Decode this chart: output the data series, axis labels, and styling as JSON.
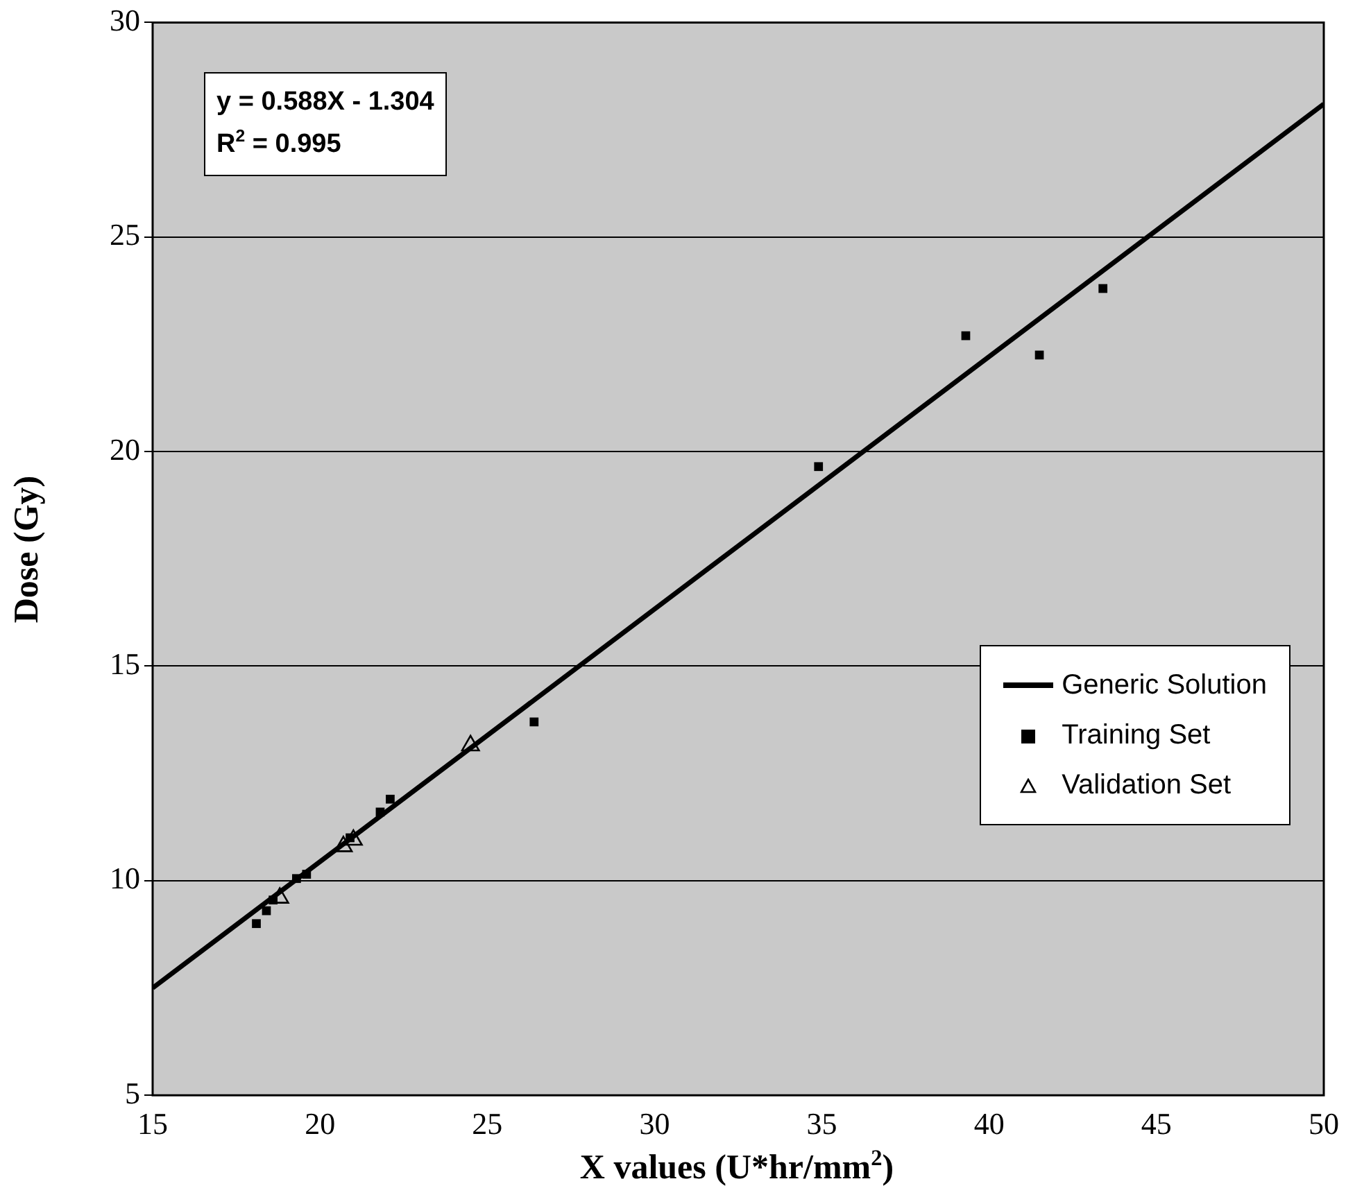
{
  "chart_data": {
    "type": "scatter",
    "xlabel": "X values (U*hr/mm$^{2}$)",
    "ylabel": "Dose (Gy)",
    "xlim": [
      15,
      50
    ],
    "xticks": [
      15,
      20,
      25,
      30,
      35,
      40,
      45,
      50
    ],
    "ylim": [
      5,
      30
    ],
    "yticks": [
      5,
      10,
      15,
      20,
      25,
      30
    ],
    "grid": "y",
    "legend": "right",
    "annotations": [
      "y = 0.588X - 1.304",
      "R$^{2}$ = 0.995"
    ],
    "series": [
      {
        "name": "Generic Solution",
        "type": "line",
        "color": "#000000",
        "marker": "none",
        "line_style": "solid",
        "x": [
          15,
          50
        ],
        "values": [
          7.5,
          28.1
        ]
      },
      {
        "name": "Training Set",
        "type": "scatter",
        "color": "#000000",
        "marker": "square",
        "x": [
          18.1,
          18.4,
          18.6,
          19.3,
          19.6,
          20.9,
          21.8,
          22.1,
          26.4,
          34.9,
          39.3,
          41.5,
          43.4
        ],
        "values": [
          9.0,
          9.3,
          9.55,
          10.05,
          10.15,
          11.0,
          11.6,
          11.9,
          13.7,
          19.65,
          22.7,
          22.25,
          23.8
        ]
      },
      {
        "name": "Validation Set",
        "type": "scatter",
        "color": "#000000",
        "marker": "triangle",
        "x": [
          18.8,
          20.7,
          21.0,
          24.5
        ],
        "values": [
          9.6,
          10.8,
          10.95,
          13.15
        ]
      }
    ]
  }
}
